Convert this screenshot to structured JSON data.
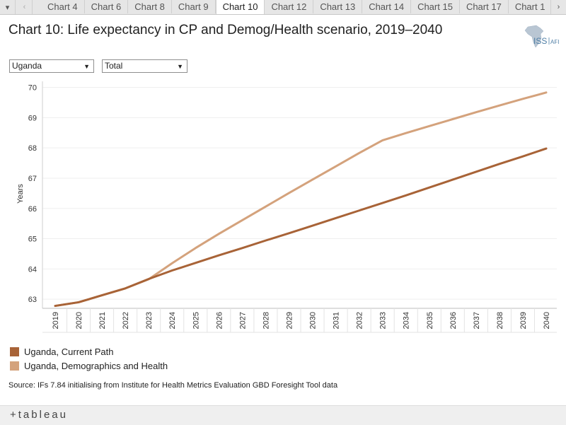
{
  "tabs": [
    "Chart 4",
    "Chart 6",
    "Chart 8",
    "Chart 9",
    "Chart 10",
    "Chart 12",
    "Chart 13",
    "Chart 14",
    "Chart 15",
    "Chart 17",
    "Chart 1"
  ],
  "active_tab": "Chart 10",
  "title": "Chart 10: Life expectancy in CP and Demog/Health scenario, 2019–2040",
  "logo": {
    "text_main": "ISS",
    "text_sub": "AFI"
  },
  "filters": {
    "country": "Uganda",
    "measure": "Total"
  },
  "source": "Source: IFs 7.84 initialising from Institute for Health Metrics Evaluation GBD Foresight Tool data",
  "footer_brand": "+tableau",
  "colors": {
    "current_path": "#a86337",
    "demog_health": "#d4a27c"
  },
  "chart_data": {
    "type": "line",
    "title": "Chart 10: Life expectancy in CP and Demog/Health scenario, 2019–2040",
    "xlabel": "",
    "ylabel": "Years",
    "ylim": [
      62.7,
      70.2
    ],
    "yticks": [
      63,
      64,
      65,
      66,
      67,
      68,
      69,
      70
    ],
    "x": [
      2019,
      2020,
      2021,
      2022,
      2023,
      2024,
      2025,
      2026,
      2027,
      2028,
      2029,
      2030,
      2031,
      2032,
      2033,
      2034,
      2035,
      2036,
      2037,
      2038,
      2039,
      2040
    ],
    "series": [
      {
        "name": "Uganda, Current Path",
        "values": [
          62.78,
          62.9,
          63.13,
          63.36,
          63.67,
          63.95,
          64.2,
          64.45,
          64.69,
          64.94,
          65.18,
          65.43,
          65.68,
          65.93,
          66.18,
          66.43,
          66.69,
          66.95,
          67.21,
          67.47,
          67.72,
          67.98
        ]
      },
      {
        "name": "Uganda, Demographics and Health",
        "values": [
          62.78,
          62.9,
          63.13,
          63.36,
          63.66,
          64.19,
          64.69,
          65.16,
          65.61,
          66.06,
          66.51,
          66.95,
          67.39,
          67.83,
          68.25,
          68.49,
          68.72,
          68.95,
          69.18,
          69.4,
          69.62,
          69.83
        ]
      }
    ],
    "legend_position": "bottom-left"
  }
}
